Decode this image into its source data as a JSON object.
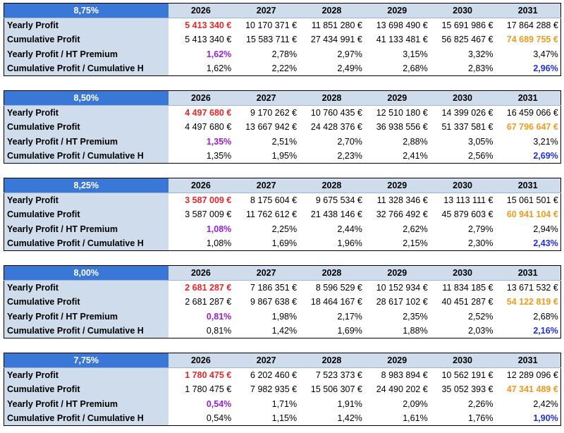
{
  "years": [
    "2026",
    "2027",
    "2028",
    "2029",
    "2030",
    "2031"
  ],
  "row_labels": [
    "Yearly Profit",
    "Cumulative Profit",
    "Yearly Profit / HT Premium",
    "Cumulative Profit / Cumulative H"
  ],
  "colors": {
    "header_rate_bg": "#3a78d8",
    "header_bg": "#cfdcec",
    "first_year_profit": "#e8262b",
    "final_cumulative": "#f39a1f",
    "first_ratio": "#9b1fd6",
    "final_ratio": "#1f2fe0"
  },
  "blocks": [
    {
      "rate": "8,75%",
      "rows": [
        [
          "5 413 340 €",
          "10 170 371 €",
          "11 851 280 €",
          "13 698 490 €",
          "15 691 986 €",
          "17 864 288 €"
        ],
        [
          "5 413 340 €",
          "15 583 711 €",
          "27 434 991 €",
          "41 133 481 €",
          "56 825 467 €",
          "74 689 755 €"
        ],
        [
          "1,62%",
          "2,78%",
          "2,97%",
          "3,15%",
          "3,32%",
          "3,47%"
        ],
        [
          "1,62%",
          "2,22%",
          "2,49%",
          "2,68%",
          "2,83%",
          "2,96%"
        ]
      ]
    },
    {
      "rate": "8,50%",
      "rows": [
        [
          "4 497 680 €",
          "9 170 262 €",
          "10 760 435 €",
          "12 510 180 €",
          "14 399 026 €",
          "16 459 066 €"
        ],
        [
          "4 497 680 €",
          "13 667 942 €",
          "24 428 376 €",
          "36 938 556 €",
          "51 337 581 €",
          "67 796 647 €"
        ],
        [
          "1,35%",
          "2,51%",
          "2,70%",
          "2,88%",
          "3,05%",
          "3,21%"
        ],
        [
          "1,35%",
          "1,95%",
          "2,23%",
          "2,41%",
          "2,56%",
          "2,69%"
        ]
      ]
    },
    {
      "rate": "8,25%",
      "rows": [
        [
          "3 587 009 €",
          "8 175 604 €",
          "9 675 534 €",
          "11 328 346 €",
          "13 113 111 €",
          "15 061 501 €"
        ],
        [
          "3 587 009 €",
          "11 762 612 €",
          "21 438 146 €",
          "32 766 492 €",
          "45 879 603 €",
          "60 941 104 €"
        ],
        [
          "1,08%",
          "2,25%",
          "2,44%",
          "2,62%",
          "2,79%",
          "2,94%"
        ],
        [
          "1,08%",
          "1,69%",
          "1,96%",
          "2,15%",
          "2,30%",
          "2,43%"
        ]
      ]
    },
    {
      "rate": "8,00%",
      "rows": [
        [
          "2 681 287 €",
          "7 186 351 €",
          "8 596 529 €",
          "10 152 934 €",
          "11 834 185 €",
          "13 671 532 €"
        ],
        [
          "2 681 287 €",
          "9 867 638 €",
          "18 464 167 €",
          "28 617 102 €",
          "40 451 287 €",
          "54 122 819 €"
        ],
        [
          "0,81%",
          "1,98%",
          "2,17%",
          "2,35%",
          "2,52%",
          "2,68%"
        ],
        [
          "0,81%",
          "1,42%",
          "1,69%",
          "1,88%",
          "2,03%",
          "2,16%"
        ]
      ]
    },
    {
      "rate": "7,75%",
      "rows": [
        [
          "1 780 475 €",
          "6 202 460 €",
          "7 523 373 €",
          "8 983 894 €",
          "10 562 191 €",
          "12 289 096 €"
        ],
        [
          "1 780 475 €",
          "7 982 935 €",
          "15 506 307 €",
          "24 490 202 €",
          "35 052 393 €",
          "47 341 489 €"
        ],
        [
          "0,54%",
          "1,71%",
          "1,91%",
          "2,09%",
          "2,26%",
          "2,42%"
        ],
        [
          "0,54%",
          "1,15%",
          "1,42%",
          "1,61%",
          "1,76%",
          "1,90%"
        ]
      ]
    }
  ]
}
